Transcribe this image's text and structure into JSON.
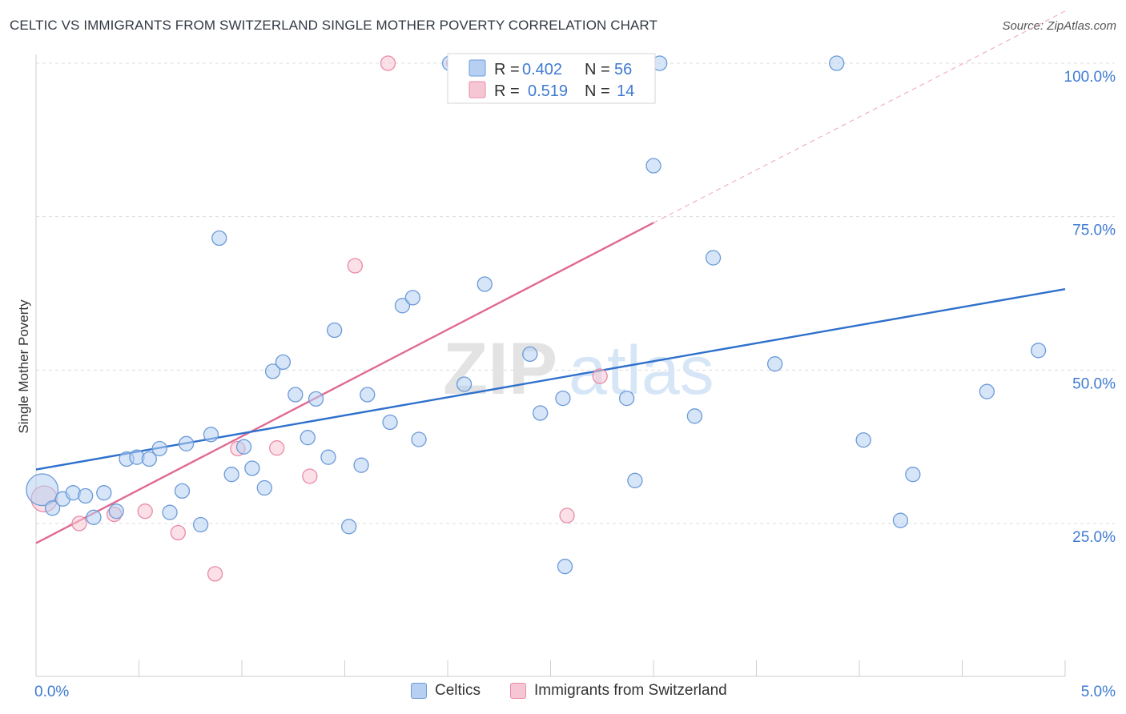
{
  "header": {
    "title": "CELTIC VS IMMIGRANTS FROM SWITZERLAND SINGLE MOTHER POVERTY CORRELATION CHART",
    "source": "Source: ZipAtlas.com"
  },
  "watermark": {
    "part1": "ZIP",
    "part2": "atlas"
  },
  "colors": {
    "celtic_fill": "#b7d0f2",
    "celtic_stroke": "#6b9bd8",
    "celtic_line": "#2e70cc",
    "swiss_fill": "#f7c6d4",
    "swiss_stroke": "#e98aa6",
    "swiss_line": "#e06a92",
    "axis_label": "#3f7bd1",
    "grid": "#dcdcdc"
  },
  "chart_data": {
    "type": "scatter",
    "title": "CELTIC VS IMMIGRANTS FROM SWITZERLAND SINGLE MOTHER POVERTY CORRELATION CHART",
    "xlabel": "",
    "ylabel": "Single Mother Poverty",
    "xlim": [
      0,
      5
    ],
    "ylim": [
      0,
      105
    ],
    "x_ticks": [
      0,
      5
    ],
    "x_tick_labels": [
      "0.0%",
      "5.0%"
    ],
    "y_ticks": [
      25,
      50,
      75,
      100
    ],
    "y_tick_labels": [
      "25.0%",
      "50.0%",
      "75.0%",
      "100.0%"
    ],
    "grid": true,
    "legend_position": "top-center",
    "series": [
      {
        "name": "Celtics",
        "r_label": "R =",
        "r_value": "0.402",
        "n_label": "N =",
        "n_value": "56",
        "trend": {
          "x0": 0,
          "y0": 33.8,
          "x1": 5,
          "y1": 63.2
        },
        "points": [
          [
            0.03,
            30.5,
            2.2
          ],
          [
            0.08,
            27.5,
            1
          ],
          [
            0.13,
            29.0,
            1
          ],
          [
            0.18,
            30.0,
            1
          ],
          [
            0.24,
            29.5,
            1
          ],
          [
            0.28,
            26.0,
            1
          ],
          [
            0.33,
            30.0,
            1
          ],
          [
            0.39,
            27.0,
            1
          ],
          [
            0.44,
            35.5,
            1
          ],
          [
            0.49,
            35.8,
            1
          ],
          [
            0.55,
            35.5,
            1
          ],
          [
            0.6,
            37.2,
            1
          ],
          [
            0.65,
            26.8,
            1
          ],
          [
            0.71,
            30.3,
            1
          ],
          [
            0.73,
            38.0,
            1
          ],
          [
            0.8,
            24.8,
            1
          ],
          [
            0.85,
            39.5,
            1
          ],
          [
            0.89,
            71.5,
            1
          ],
          [
            0.95,
            33.0,
            1
          ],
          [
            1.01,
            37.5,
            1
          ],
          [
            1.05,
            34.0,
            1
          ],
          [
            1.11,
            30.8,
            1
          ],
          [
            1.15,
            49.8,
            1
          ],
          [
            1.2,
            51.3,
            1
          ],
          [
            1.26,
            46.0,
            1
          ],
          [
            1.32,
            39.0,
            1
          ],
          [
            1.36,
            45.3,
            1
          ],
          [
            1.42,
            35.8,
            1
          ],
          [
            1.45,
            56.5,
            1
          ],
          [
            1.52,
            24.5,
            1
          ],
          [
            1.58,
            34.5,
            1
          ],
          [
            1.61,
            46.0,
            1
          ],
          [
            1.72,
            41.5,
            1
          ],
          [
            1.78,
            60.5,
            1
          ],
          [
            1.83,
            61.8,
            1
          ],
          [
            1.86,
            38.7,
            1
          ],
          [
            2.01,
            100.0,
            1
          ],
          [
            2.08,
            47.7,
            1
          ],
          [
            2.18,
            64.0,
            1
          ],
          [
            2.4,
            52.6,
            1
          ],
          [
            2.45,
            43.0,
            1
          ],
          [
            2.56,
            45.4,
            1
          ],
          [
            2.57,
            18.0,
            1
          ],
          [
            2.87,
            45.4,
            1
          ],
          [
            2.91,
            32.0,
            1
          ],
          [
            3.0,
            83.3,
            1
          ],
          [
            3.03,
            100.0,
            1
          ],
          [
            3.2,
            42.5,
            1
          ],
          [
            3.29,
            68.3,
            1
          ],
          [
            3.59,
            51.0,
            1
          ],
          [
            3.89,
            100.0,
            1
          ],
          [
            4.02,
            38.6,
            1
          ],
          [
            4.2,
            25.5,
            1
          ],
          [
            4.26,
            33.0,
            1
          ],
          [
            4.62,
            46.5,
            1
          ],
          [
            4.87,
            53.2,
            1
          ]
        ]
      },
      {
        "name": "Immigrants from Switzerland",
        "r_label": "R =",
        "r_value": "0.519",
        "n_label": "N =",
        "n_value": "14",
        "trend": {
          "x0": 0,
          "y0": 21.8,
          "x1": 3.0,
          "y1": 74.0
        },
        "trend_extension": {
          "x0": 3.0,
          "y0": 74.0,
          "x1": 5.0,
          "y1": 108.5
        },
        "points": [
          [
            0.04,
            29.0,
            1.8
          ],
          [
            0.21,
            25.0,
            1
          ],
          [
            0.38,
            26.5,
            1
          ],
          [
            0.53,
            27.0,
            1
          ],
          [
            0.69,
            23.5,
            1
          ],
          [
            0.87,
            16.8,
            1
          ],
          [
            0.98,
            37.2,
            1
          ],
          [
            1.17,
            37.3,
            1
          ],
          [
            1.33,
            32.7,
            1
          ],
          [
            1.55,
            67.0,
            1
          ],
          [
            1.71,
            100.0,
            1
          ],
          [
            2.03,
            100.0,
            1
          ],
          [
            2.58,
            26.3,
            1
          ],
          [
            2.74,
            49.0,
            1
          ]
        ]
      }
    ]
  }
}
